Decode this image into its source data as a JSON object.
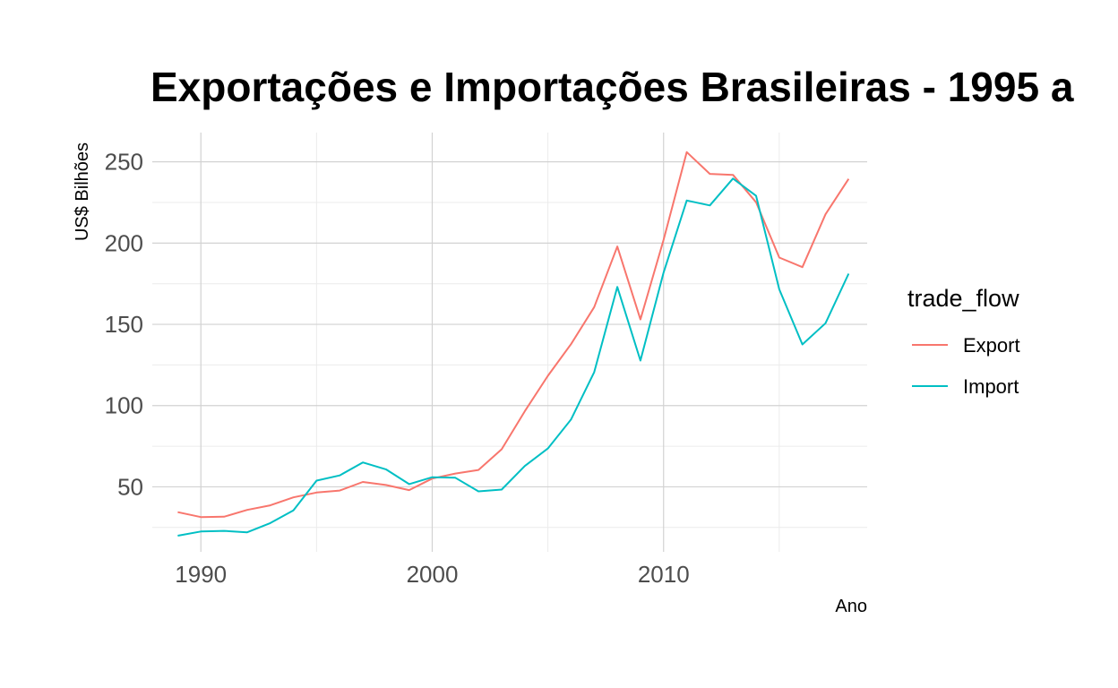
{
  "chart_data": {
    "type": "line",
    "title": "Exportações e Importações Brasileiras - 1995 a",
    "xlabel": "Ano",
    "ylabel": "US$ Bilhões",
    "xlim": [
      1987.9,
      2018.8
    ],
    "ylim": [
      10,
      268
    ],
    "x_ticks": [
      1990,
      2000,
      2010
    ],
    "y_ticks": [
      50,
      100,
      150,
      200,
      250
    ],
    "grid": true,
    "legend": {
      "title": "trade_flow",
      "position": "right"
    },
    "x": [
      1989,
      1990,
      1991,
      1992,
      1993,
      1994,
      1995,
      1996,
      1997,
      1998,
      1999,
      2000,
      2001,
      2002,
      2003,
      2004,
      2005,
      2006,
      2007,
      2008,
      2009,
      2010,
      2011,
      2012,
      2013,
      2014,
      2015,
      2016,
      2017,
      2018
    ],
    "series": [
      {
        "name": "Export",
        "color": "#f8766d",
        "values": [
          34.4,
          31.4,
          31.6,
          35.8,
          38.6,
          43.5,
          46.5,
          47.7,
          53.0,
          51.1,
          48.0,
          55.1,
          58.2,
          60.4,
          73.1,
          96.5,
          118.3,
          137.8,
          160.6,
          197.9,
          153.0,
          201.9,
          256.0,
          242.6,
          242.0,
          225.1,
          191.1,
          185.2,
          217.7,
          239.5
        ]
      },
      {
        "name": "Import",
        "color": "#00bfc4",
        "values": [
          19.9,
          22.5,
          22.9,
          22.0,
          27.7,
          35.5,
          53.8,
          57.0,
          65.0,
          60.8,
          51.7,
          55.9,
          55.6,
          47.2,
          48.3,
          62.8,
          73.6,
          91.4,
          120.6,
          173.0,
          127.7,
          181.8,
          226.2,
          223.2,
          239.7,
          229.1,
          171.5,
          137.6,
          150.7,
          181.2
        ]
      }
    ]
  }
}
